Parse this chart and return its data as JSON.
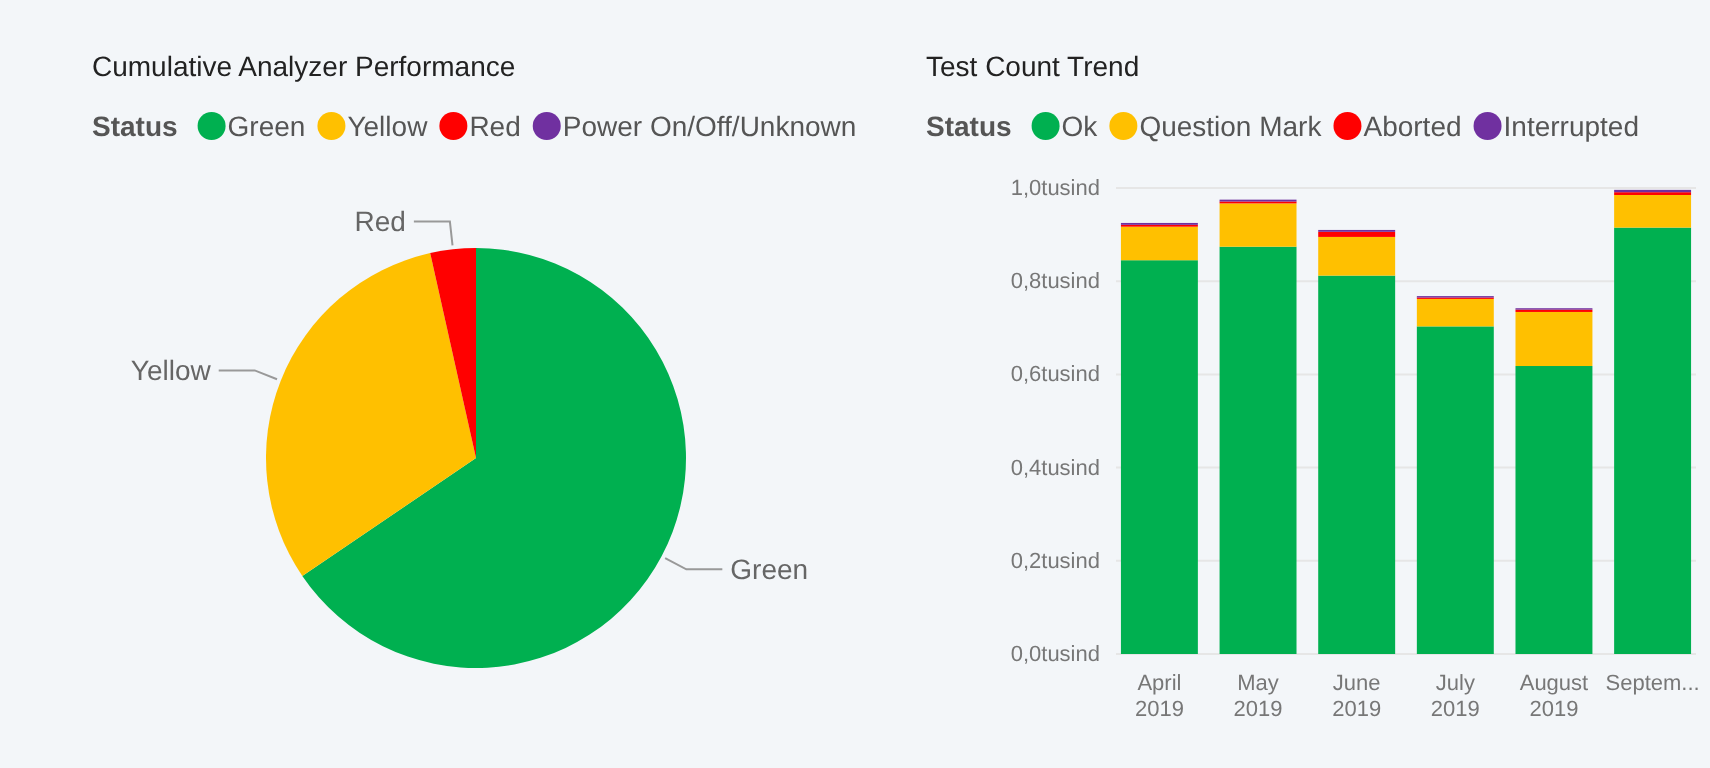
{
  "chart_data": [
    {
      "type": "pie",
      "title": "Cumulative Analyzer Performance",
      "legend_title": "Status",
      "legend": "top",
      "categories": [
        "Green",
        "Yellow",
        "Red",
        "Power On/Off/Unknown"
      ],
      "values": [
        65.5,
        31,
        3.5,
        0
      ],
      "colors": [
        "#00b050",
        "#ffc000",
        "#ff0000",
        "#7030a0"
      ]
    },
    {
      "type": "bar",
      "title": "Test Count Trend",
      "legend_title": "Status",
      "legend": "top",
      "stacked": true,
      "grid": "y",
      "categories": [
        "April 2019",
        "May 2019",
        "June 2019",
        "July 2019",
        "August 2019",
        "Septem..."
      ],
      "ylim": [
        0,
        1
      ],
      "yticks": [
        {
          "value": 0,
          "label": "0,0tusind"
        },
        {
          "value": 0.2,
          "label": "0,2tusind"
        },
        {
          "value": 0.4,
          "label": "0,4tusind"
        },
        {
          "value": 0.6,
          "label": "0,6tusind"
        },
        {
          "value": 0.8,
          "label": "0,8tusind"
        },
        {
          "value": 1,
          "label": "1,0tusind"
        }
      ],
      "series": [
        {
          "name": "Ok",
          "color": "#00b050",
          "values": [
            0.845,
            0.874,
            0.812,
            0.703,
            0.618,
            0.915
          ]
        },
        {
          "name": "Question Mark",
          "color": "#ffc000",
          "values": [
            0.072,
            0.093,
            0.083,
            0.059,
            0.116,
            0.07
          ]
        },
        {
          "name": "Aborted",
          "color": "#ff0000",
          "values": [
            0.004,
            0.004,
            0.011,
            0.003,
            0.005,
            0.006
          ]
        },
        {
          "name": "Interrupted",
          "color": "#7030a0",
          "values": [
            0.004,
            0.004,
            0.004,
            0.003,
            0.003,
            0.005
          ]
        }
      ]
    }
  ]
}
